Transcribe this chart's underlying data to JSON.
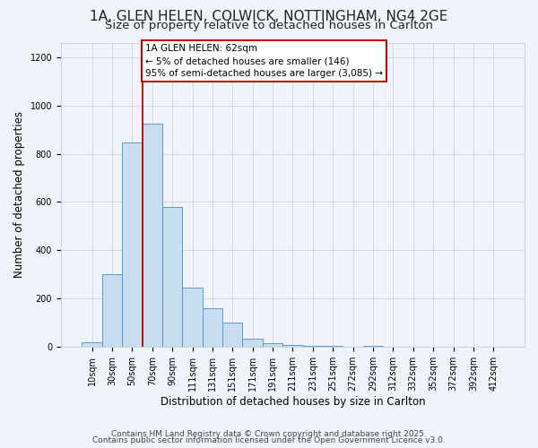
{
  "title": "1A, GLEN HELEN, COLWICK, NOTTINGHAM, NG4 2GE",
  "subtitle": "Size of property relative to detached houses in Carlton",
  "xlabel": "Distribution of detached houses by size in Carlton",
  "ylabel": "Number of detached properties",
  "bar_labels": [
    "10sqm",
    "30sqm",
    "50sqm",
    "70sqm",
    "90sqm",
    "111sqm",
    "131sqm",
    "151sqm",
    "171sqm",
    "191sqm",
    "211sqm",
    "231sqm",
    "251sqm",
    "272sqm",
    "292sqm",
    "312sqm",
    "332sqm",
    "352sqm",
    "372sqm",
    "392sqm",
    "412sqm"
  ],
  "bar_values": [
    20,
    300,
    845,
    925,
    580,
    245,
    162,
    100,
    35,
    15,
    10,
    5,
    5,
    0,
    5,
    0,
    0,
    0,
    0,
    0,
    0
  ],
  "bar_color": "#c9ddf0",
  "bar_edge_color": "#5b9bd5",
  "vline_x": 2.5,
  "vline_color": "#c00000",
  "annotation_text": "1A GLEN HELEN: 62sqm\n← 5% of detached houses are smaller (146)\n95% of semi-detached houses are larger (3,085) →",
  "annotation_box_color": "#ffffff",
  "annotation_box_edge_color": "#c00000",
  "ylim": [
    0,
    1260
  ],
  "yticks": [
    0,
    200,
    400,
    600,
    800,
    1000,
    1200
  ],
  "footer1": "Contains HM Land Registry data © Crown copyright and database right 2025.",
  "footer2": "Contains public sector information licensed under the Open Government Licence v3.0.",
  "bg_color": "#f0f4fa",
  "plot_bg_color": "#f0f4fa",
  "grid_color": "#ccd4e0",
  "title_fontsize": 11,
  "subtitle_fontsize": 9.5,
  "axis_label_fontsize": 8.5,
  "tick_fontsize": 7,
  "annotation_fontsize": 7.5,
  "footer_fontsize": 6.5
}
